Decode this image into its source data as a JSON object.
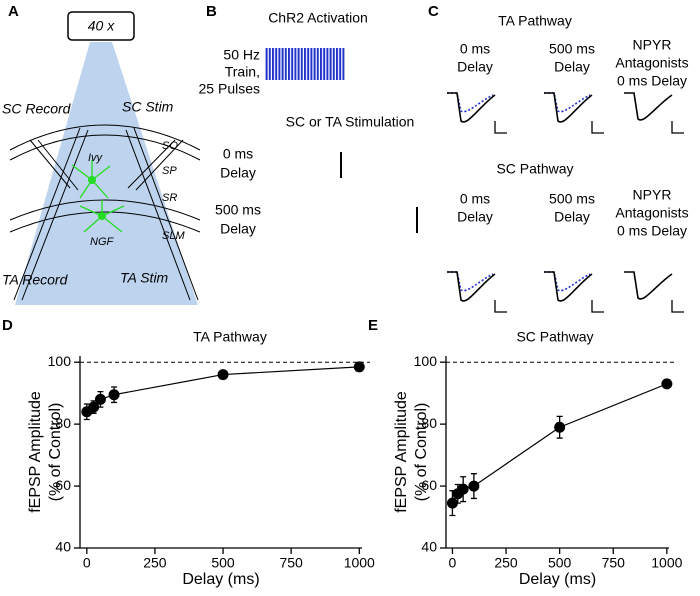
{
  "panels": {
    "a": {
      "label": "A",
      "objective": "40 x",
      "sc_record": "SC Record",
      "sc_stim": "SC Stim",
      "layers": [
        "SO",
        "SP",
        "SR",
        "SLM"
      ],
      "cells": [
        "Ivy",
        "NGF"
      ],
      "ta_record": "TA Record",
      "ta_stim": "TA Stim"
    },
    "b": {
      "label": "B",
      "title": "ChR2 Activation",
      "train": [
        "50 Hz",
        "Train,",
        "25 Pulses"
      ],
      "stim_title": "SC or TA Stimulation",
      "delay0": [
        "0 ms",
        "Delay"
      ],
      "delay500": [
        "500 ms",
        "Delay"
      ]
    },
    "c": {
      "label": "C",
      "ta": {
        "title": "TA Pathway",
        "cols": [
          [
            "0 ms",
            "Delay"
          ],
          [
            "500 ms",
            "Delay"
          ],
          [
            "NPYR",
            "Antagonists",
            "0 ms Delay"
          ]
        ]
      },
      "sc": {
        "title": "SC Pathway",
        "cols": [
          [
            "0 ms",
            "Delay"
          ],
          [
            "500 ms",
            "Delay"
          ],
          [
            "NPYR",
            "Antagonists",
            "0 ms Delay"
          ]
        ]
      }
    }
  },
  "chart_data": [
    {
      "type": "line",
      "panel_label": "D",
      "title": "TA Pathway",
      "x_label": "Delay (ms)",
      "y_label": [
        "fEPSP Amplitude",
        "(% of Control)"
      ],
      "x": [
        0,
        25,
        50,
        100,
        500,
        1000
      ],
      "values": [
        84,
        85.5,
        88,
        89.5,
        96,
        98.5
      ],
      "errors": [
        2.5,
        2,
        2.5,
        2.5,
        1,
        1
      ],
      "color": "#000000",
      "reference_line": 100,
      "xlim": [
        -25,
        1010
      ],
      "xticks": [
        0,
        250,
        500,
        750,
        1000
      ],
      "ylim": [
        40,
        102
      ],
      "yticks": [
        40,
        60,
        80,
        100
      ]
    },
    {
      "type": "line",
      "panel_label": "E",
      "title": "SC Pathway",
      "x_label": "Delay (ms)",
      "y_label": [
        "fEPSP Amplitude",
        "(% of Control)"
      ],
      "x": [
        0,
        25,
        50,
        100,
        500,
        1000
      ],
      "values": [
        54.5,
        57.5,
        59,
        60,
        79,
        93
      ],
      "errors": [
        4,
        3,
        4,
        4,
        3.5,
        1
      ],
      "color": "#000000",
      "reference_line": 100,
      "xlim": [
        -30,
        1010
      ],
      "xticks": [
        0,
        250,
        500,
        750,
        1000
      ],
      "ylim": [
        40,
        102
      ],
      "yticks": [
        40,
        60,
        80,
        100
      ]
    }
  ]
}
